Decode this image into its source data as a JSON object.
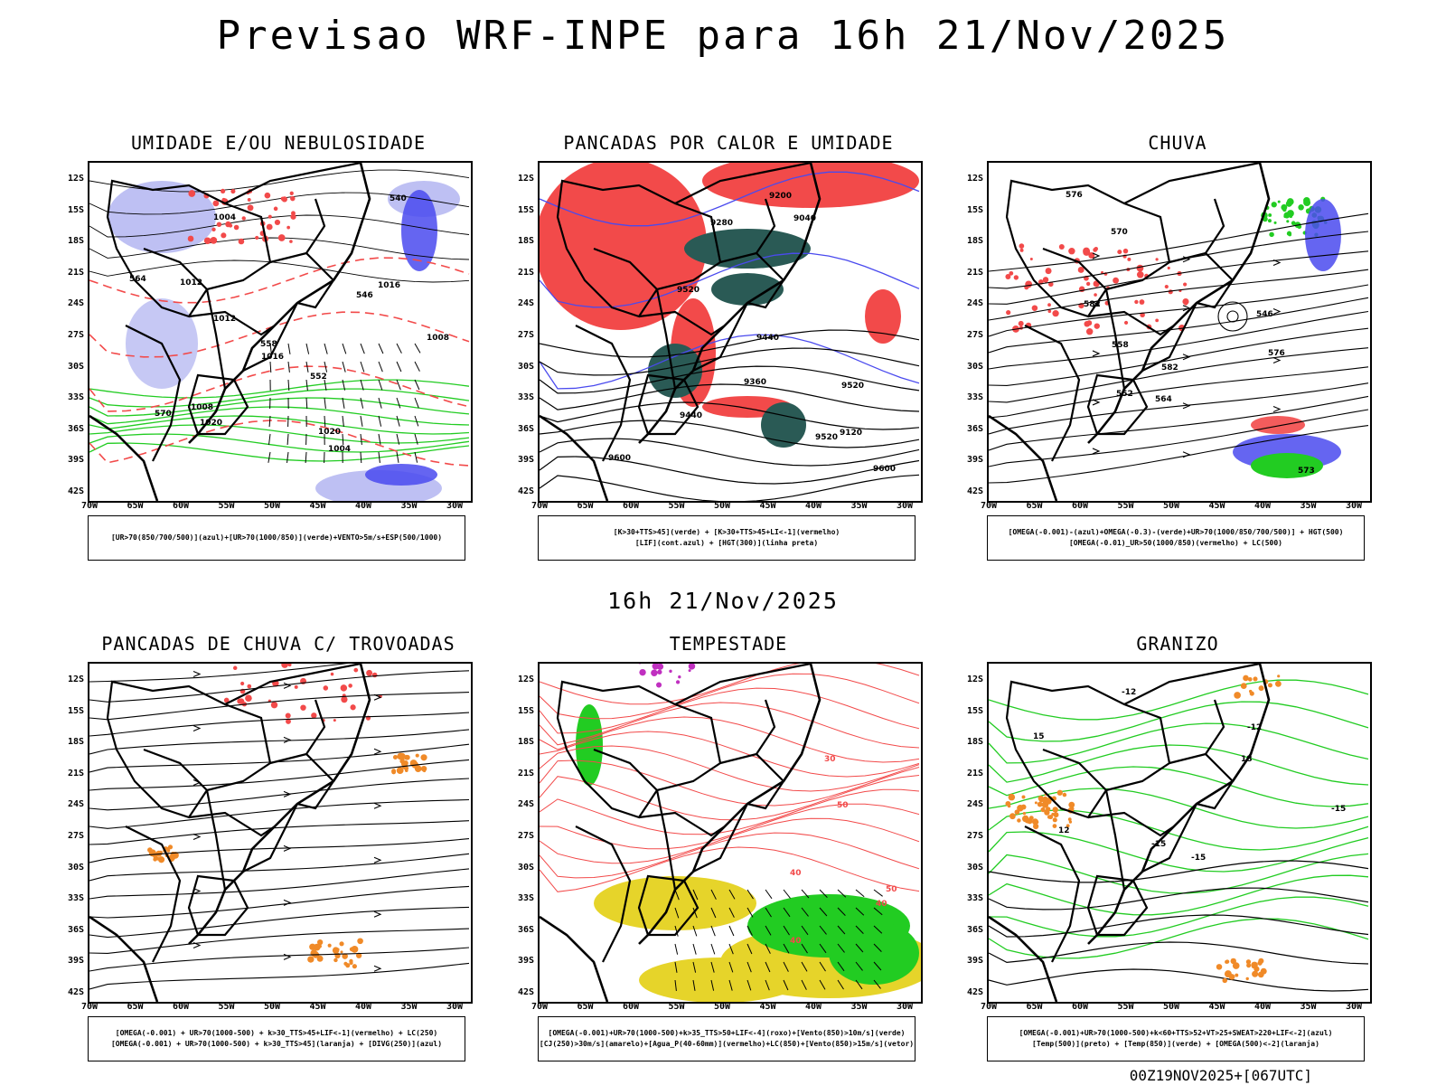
{
  "title": "Previsao WRF-INPE  para 16h 21/Nov/2025",
  "subtitle": "16h 21/Nov/2025",
  "footer": "00Z19NOV2025+[067UTC]",
  "colors": {
    "red": "#f24a4a",
    "blue": "#4a4aee",
    "lightblue": "#aeb0f0",
    "green": "#22cc22",
    "darkteal": "#2a5a55",
    "yellow": "#e6d42a",
    "orange": "#f08a28",
    "purple": "#c030c0",
    "black": "#000000"
  },
  "lat_labels": [
    "12S",
    "15S",
    "18S",
    "21S",
    "24S",
    "27S",
    "30S",
    "33S",
    "36S",
    "39S",
    "42S"
  ],
  "lon_labels": [
    "70W",
    "65W",
    "60W",
    "55W",
    "50W",
    "45W",
    "40W",
    "35W",
    "30W"
  ],
  "panels": [
    {
      "title": "UMIDADE E/OU NEBULOSIDADE",
      "legend": [
        "[UR>70(850/700/500)](azul)+[UR>70(1000/850)](verde)+VENTO>5m/s+ESP(500/1000)"
      ],
      "contour_labels": [
        "1004",
        "1004",
        "1008",
        "1012",
        "1016",
        "1020",
        "1008",
        "1012",
        "1016",
        "1020",
        "570",
        "564",
        "558",
        "552",
        "546",
        "540"
      ]
    },
    {
      "title": "PANCADAS POR CALOR E UMIDADE",
      "legend": [
        "[K>30+TTS>45](verde) + [K>30+TTS>45+LI<-1](vermelho)",
        "[LIF](cont.azul) + [HGT(300)](linha preta)"
      ],
      "contour_labels": [
        "9600",
        "9520",
        "9440",
        "9360",
        "9280",
        "9200",
        "9120",
        "9040",
        "9520",
        "9440",
        "9600",
        "9520"
      ]
    },
    {
      "title": "CHUVA",
      "legend": [
        "[OMEGA(-0.001)-(azul)+OMEGA(-0.3)-(verde)+UR>70(1000/850/700/500)] + HGT(500)",
        "[OMEGA(-0.01)_UR>50(1000/850)(vermelho) + LC(500)"
      ],
      "contour_labels": [
        "582",
        "582",
        "576",
        "576",
        "573",
        "570",
        "564",
        "558",
        "552",
        "546"
      ]
    },
    {
      "title": "PANCADAS DE CHUVA C/ TROVOADAS",
      "legend": [
        "[OMEGA(-0.001) + UR>70(1000-500) + k>30_TTS>45+LIF<-1](vermelho) + LC(250)",
        "[OMEGA(-0.001) + UR>70(1000-500) + k>30_TTS>45](laranja) + [DIVG(250)](azul)"
      ],
      "contour_labels": []
    },
    {
      "title": "TEMPESTADE",
      "legend": [
        "[OMEGA(-0.001)+UR>70(1000-500)+k>35_TTS>50+LIF<-4](roxo)+[Vento(850)>10m/s](verde)",
        "[CJ(250)>30m/s](amarelo)+[Agua_P(40-60mm)](vermelho)+LC(850)+[Vento(850)>15m/s](vetor)"
      ],
      "contour_labels": [
        "40",
        "50",
        "50",
        "40",
        "40",
        "30"
      ]
    },
    {
      "title": "GRANIZO",
      "legend": [
        "[OMEGA(-0.001)+UR>70(1000-500)+k<60+TTS>52+VT>25+SWEAT>220+LIF<-2](azul)",
        "[Temp(500)](preto) + [Temp(850)](verde) + [OMEGA(500)<-2](laranja)"
      ],
      "contour_labels": [
        "-12",
        "-12",
        "-15",
        "-15",
        "-15",
        "12",
        "15",
        "18"
      ]
    }
  ]
}
